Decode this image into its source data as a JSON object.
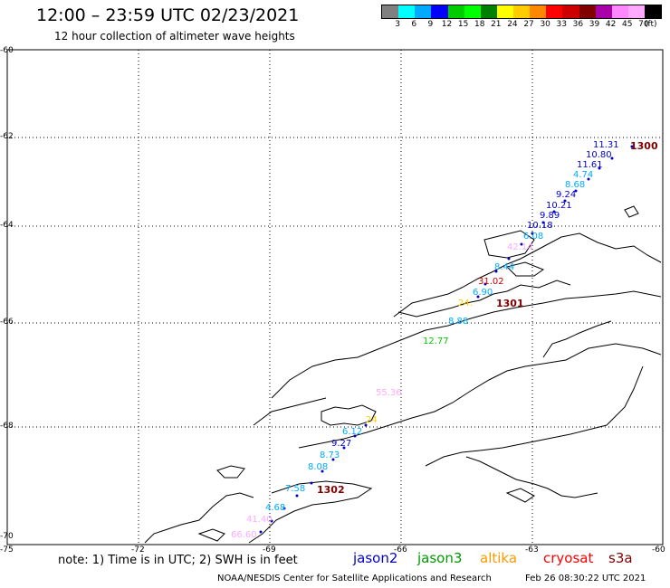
{
  "title": "12:00 – 23:59 UTC 02/23/2021",
  "subtitle": "12 hour collection of altimeter wave heights",
  "legend": {
    "unit": "(ft)",
    "colors": [
      "#808080",
      "#00ffff",
      "#00aaff",
      "#0000ff",
      "#00cc00",
      "#00ff00",
      "#008000",
      "#ffff00",
      "#ffcc00",
      "#ff8800",
      "#ff0000",
      "#cc0000",
      "#800000",
      "#aa00aa",
      "#ff88ff",
      "#ffaaff",
      "#000000"
    ],
    "ticks": [
      "3",
      "6",
      "9",
      "12",
      "15",
      "18",
      "21",
      "24",
      "27",
      "30",
      "33",
      "36",
      "39",
      "42",
      "45",
      "70"
    ]
  },
  "axes": {
    "lat_labels": [
      "-60",
      "-62",
      "-64",
      "-66",
      "-68",
      "-70"
    ],
    "lon_labels": [
      "-75",
      "-72",
      "-69",
      "-66",
      "-63",
      "-60"
    ]
  },
  "note": "note: 1) Time is in UTC; 2) SWH is in feet",
  "satellites": [
    {
      "name": "jason2",
      "color": "#0000cc"
    },
    {
      "name": "jason3",
      "color": "#009900"
    },
    {
      "name": "altika",
      "color": "#ff9900"
    },
    {
      "name": "cryosat",
      "color": "#ff0000"
    },
    {
      "name": "s3a",
      "color": "#800000"
    }
  ],
  "credit": "NOAA/NESDIS Center for Satellite Applications and Research",
  "timestamp": "Feb 26 08:30:22 UTC 2021",
  "wave_labels": [
    {
      "v": "11.31",
      "c": "#0000cc"
    },
    {
      "v": "10.80",
      "c": "#0000cc"
    },
    {
      "v": "11.61",
      "c": "#0000cc"
    },
    {
      "v": "4.74",
      "c": "#00aaff"
    },
    {
      "v": "8.68",
      "c": "#00aaff"
    },
    {
      "v": "9.24",
      "c": "#0000cc"
    },
    {
      "v": "10.21",
      "c": "#0000cc"
    },
    {
      "v": "9.89",
      "c": "#0000cc"
    },
    {
      "v": "10.18",
      "c": "#0000cc"
    },
    {
      "v": "6.08",
      "c": "#00aaff"
    },
    {
      "v": "42.14",
      "c": "#ffaaff"
    },
    {
      "v": "8.44",
      "c": "#00aaff"
    },
    {
      "v": "31.02",
      "c": "#cc0000"
    },
    {
      "v": "6.90",
      "c": "#00aaff"
    },
    {
      "v": "24.",
      "c": "#ffcc00"
    },
    {
      "v": "8.88",
      "c": "#00aaff"
    },
    {
      "v": "12.77",
      "c": "#00cc00"
    },
    {
      "v": "55.36",
      "c": "#ffaaff"
    },
    {
      "v": "24",
      "c": "#ffcc00"
    },
    {
      "v": "6.12",
      "c": "#00aaff"
    },
    {
      "v": "9.27",
      "c": "#0000cc"
    },
    {
      "v": "8.73",
      "c": "#00aaff"
    },
    {
      "v": "8.08",
      "c": "#00aaff"
    },
    {
      "v": "7.58",
      "c": "#00aaff"
    },
    {
      "v": "4.68",
      "c": "#00aaff"
    },
    {
      "v": "41.40",
      "c": "#ffaaff"
    },
    {
      "v": "66.60",
      "c": "#ffaaff"
    }
  ],
  "time_labels": [
    "1300",
    "1301",
    "1302"
  ]
}
